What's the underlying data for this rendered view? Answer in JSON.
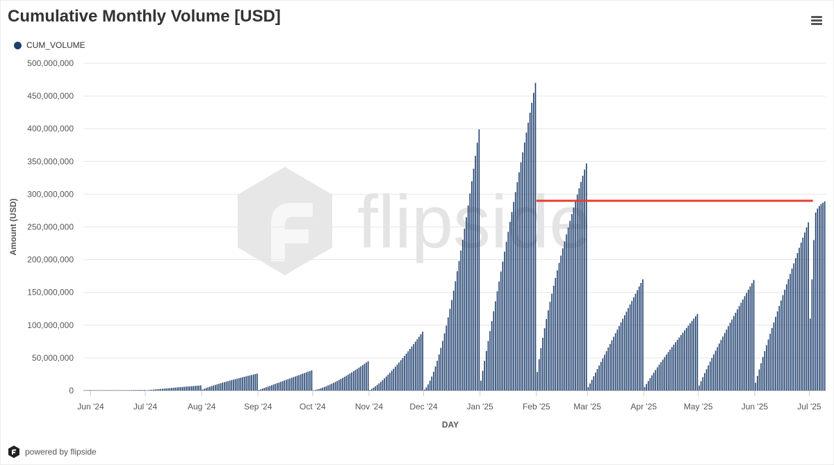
{
  "title": "Cumulative Monthly Volume [USD]",
  "footer": {
    "text": "powered by flipside"
  },
  "watermark": {
    "text": "flipside"
  },
  "menu": {
    "icon": "hamburger-menu-icon"
  },
  "colors": {
    "bar": "#1f3f6e",
    "reference_line": "#e0412f",
    "grid": "#e6e6e6"
  },
  "chart_data": {
    "type": "bar",
    "legend": {
      "position": "top-left",
      "entries": [
        "CUM_VOLUME"
      ]
    },
    "xlabel": "DAY",
    "ylabel": "Amount (USD)",
    "ylim": [
      0,
      500000000
    ],
    "grid": true,
    "y_ticks": [
      0,
      50000000,
      100000000,
      150000000,
      200000000,
      250000000,
      300000000,
      350000000,
      400000000,
      450000000,
      500000000
    ],
    "y_tick_labels": [
      "0",
      "50,000,000",
      "100,000,000",
      "150,000,000",
      "200,000,000",
      "250,000,000",
      "300,000,000",
      "350,000,000",
      "400,000,000",
      "450,000,000",
      "500,000,000"
    ],
    "x_tick_labels": [
      "Jun '24",
      "Jul '24",
      "Aug '24",
      "Sep '24",
      "Oct '24",
      "Nov '24",
      "Dec '24",
      "Jan '25",
      "Feb '25",
      "Mar '25",
      "Apr '25",
      "May '25",
      "Jun '25",
      "Jul '25"
    ],
    "reference_line": {
      "y": 290000000,
      "from": "2025-02-01",
      "to": "2025-07-03"
    },
    "series": [
      {
        "name": "CUM_VOLUME",
        "months": [
          {
            "start": "2024-05-28",
            "days": 4,
            "values": [
              300000,
              500000,
              700000,
              900000
            ]
          },
          {
            "start": "2024-06-01",
            "days": 30,
            "end": 1000000,
            "curve": 1.0
          },
          {
            "start": "2024-07-01",
            "days": 31,
            "end": 8000000,
            "curve": 0.9
          },
          {
            "start": "2024-08-01",
            "days": 31,
            "end": 26000000,
            "curve": 0.8
          },
          {
            "start": "2024-09-01",
            "days": 30,
            "end": 31000000,
            "curve": 1.0
          },
          {
            "start": "2024-10-01",
            "days": 31,
            "end": 45000000,
            "curve": 1.4
          },
          {
            "start": "2024-11-01",
            "days": 30,
            "end": 90000000,
            "curve": 1.3
          },
          {
            "start": "2024-12-01",
            "days": 31,
            "end": 399000000,
            "curve": 1.6
          },
          {
            "start": "2025-01-01",
            "days": 31,
            "end": 470000000,
            "curve": 1.0
          },
          {
            "start": "2025-02-01",
            "days": 28,
            "end": 347000000,
            "curve": 0.75
          },
          {
            "start": "2025-03-01",
            "days": 31,
            "end": 170000000,
            "curve": 1.0
          },
          {
            "start": "2025-04-01",
            "days": 30,
            "end": 117000000,
            "curve": 0.9
          },
          {
            "start": "2025-05-01",
            "days": 31,
            "end": 169000000,
            "curve": 0.9
          },
          {
            "start": "2025-06-01",
            "days": 30,
            "end": 257000000,
            "curve": 0.9
          },
          {
            "start": "2025-07-01",
            "days": 3,
            "values": [
              110000000,
              170000000,
              230000000
            ]
          },
          {
            "start": "2025-07-04",
            "days": 6,
            "values": [
              272000000,
              278000000,
              282000000,
              285000000,
              287000000,
              289000000
            ]
          }
        ]
      }
    ]
  }
}
